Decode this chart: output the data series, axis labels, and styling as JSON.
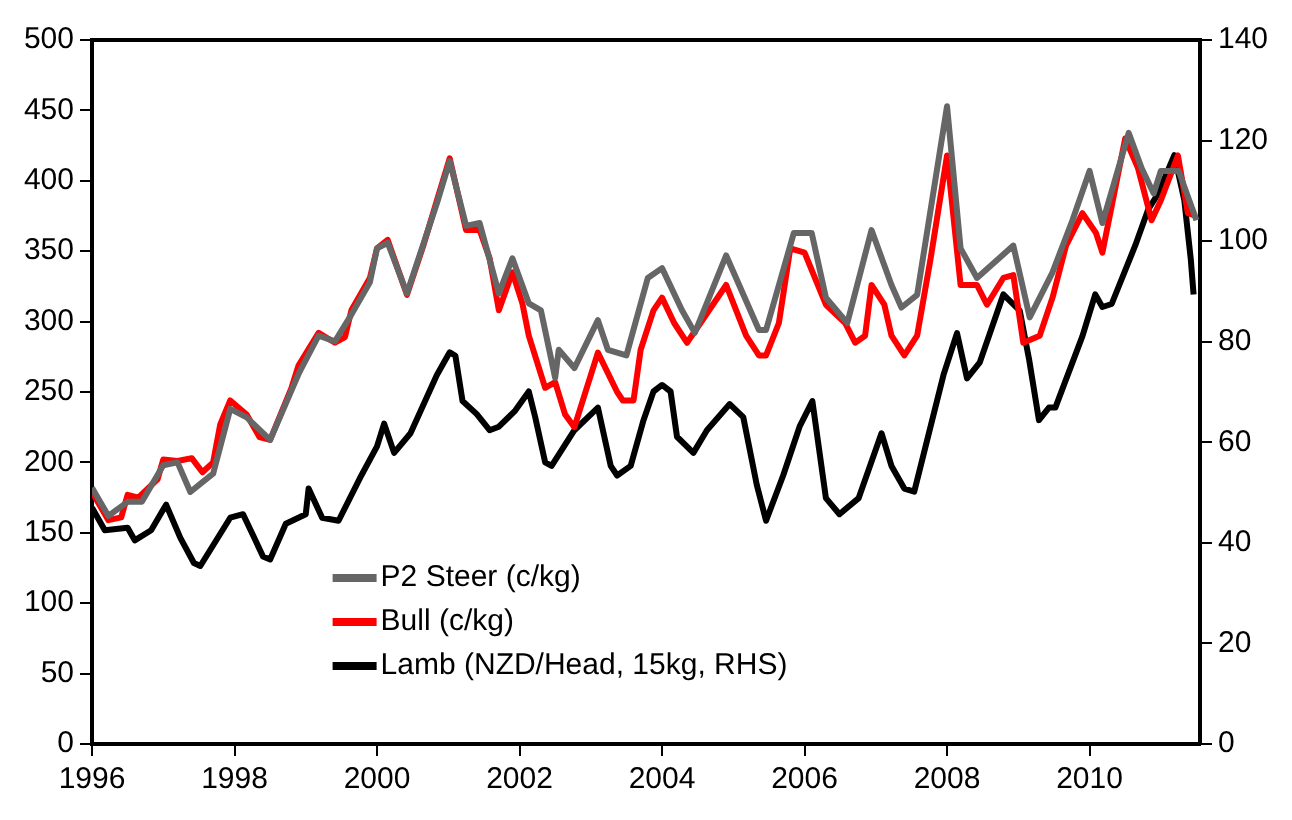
{
  "chart_data": {
    "type": "line",
    "xlim": [
      1996,
      2011.55
    ],
    "xticks": [
      1996,
      1998,
      2000,
      2002,
      2004,
      2006,
      2008,
      2010
    ],
    "ylim": [
      0,
      500
    ],
    "yticks": [
      0,
      50,
      100,
      150,
      200,
      250,
      300,
      350,
      400,
      450,
      500
    ],
    "y2lim": [
      0,
      140
    ],
    "y2ticks": [
      0,
      20,
      40,
      60,
      80,
      100,
      120,
      140
    ],
    "grid": false,
    "legend": "bottom",
    "marker": "none",
    "line_style": "solid",
    "series": [
      {
        "name": "P2 Steer (c/kg)",
        "color": "#666666",
        "x": [
          1996,
          1996.23,
          1996.5,
          1996.7,
          1997,
          1997.2,
          1997.38,
          1997.55,
          1997.7,
          1997.94,
          1998.17,
          1998.5,
          1998.9,
          1999.18,
          1999.41,
          1999.64,
          1999.9,
          2000,
          2000.15,
          2000.42,
          2000.84,
          2001.02,
          2001.25,
          2001.44,
          2001.71,
          2001.9,
          2002.13,
          2002.3,
          2002.5,
          2002.55,
          2002.77,
          2003.1,
          2003.24,
          2003.5,
          2003.8,
          2004,
          2004.28,
          2004.46,
          2004.9,
          2005.36,
          2005.46,
          2005.85,
          2006.1,
          2006.3,
          2006.6,
          2006.94,
          2007.22,
          2007.36,
          2007.58,
          2008,
          2008.19,
          2008.42,
          2008.93,
          2009.16,
          2009.48,
          2009.76,
          2010,
          2010.18,
          2010.55,
          2010.73,
          2010.9,
          2011,
          2011.25,
          2011.5
        ],
        "values": [
          182,
          162,
          172,
          172,
          198,
          200,
          179,
          186,
          192,
          238,
          232,
          216,
          263,
          290,
          286,
          305,
          328,
          352,
          356,
          320,
          384,
          414,
          368,
          370,
          320,
          345,
          313,
          308,
          260,
          280,
          267,
          301,
          280,
          276,
          331,
          338,
          308,
          292,
          347,
          294,
          294,
          363,
          363,
          317,
          299,
          365,
          326,
          310,
          319,
          453,
          352,
          331,
          354,
          303,
          335,
          372,
          407,
          370,
          434,
          409,
          391,
          407,
          407,
          372
        ]
      },
      {
        "name": "Bull (c/kg)",
        "color": "#ff0000",
        "x": [
          1996,
          1996.23,
          1996.41,
          1996.5,
          1996.65,
          1996.92,
          1997,
          1997.2,
          1997.4,
          1997.55,
          1997.7,
          1997.8,
          1997.94,
          1998.17,
          1998.35,
          1998.5,
          1998.8,
          1998.9,
          1999.18,
          1999.41,
          1999.55,
          1999.64,
          1999.9,
          2000,
          2000.15,
          2000.42,
          2000.65,
          2000.84,
          2001.02,
          2001.25,
          2001.44,
          2001.58,
          2001.71,
          2001.9,
          2002.04,
          2002.13,
          2002.36,
          2002.5,
          2002.64,
          2002.77,
          2003.1,
          2003.37,
          2003.45,
          2003.6,
          2003.7,
          2003.88,
          2004,
          2004.17,
          2004.35,
          2004.54,
          2004.9,
          2005.18,
          2005.36,
          2005.46,
          2005.64,
          2005.8,
          2006,
          2006.3,
          2006.57,
          2006.71,
          2006.85,
          2006.94,
          2007.12,
          2007.22,
          2007.4,
          2007.58,
          2007.77,
          2008,
          2008.19,
          2008.42,
          2008.56,
          2008.79,
          2008.93,
          2009.07,
          2009.3,
          2009.48,
          2009.67,
          2009.9,
          2010.09,
          2010.18,
          2010.5,
          2010.68,
          2010.87,
          2011,
          2011.24,
          2011.38,
          2011.5
        ],
        "values": [
          179,
          159,
          161,
          177,
          175,
          188,
          202,
          201,
          203,
          193,
          200,
          227,
          244,
          234,
          218,
          216,
          253,
          269,
          292,
          285,
          289,
          308,
          331,
          352,
          358,
          319,
          354,
          386,
          416,
          365,
          365,
          345,
          308,
          335,
          313,
          290,
          253,
          257,
          234,
          225,
          278,
          250,
          244,
          244,
          280,
          308,
          317,
          299,
          285,
          299,
          326,
          290,
          276,
          276,
          299,
          352,
          349,
          312,
          299,
          285,
          290,
          326,
          312,
          290,
          276,
          290,
          345,
          418,
          326,
          326,
          312,
          331,
          333,
          285,
          290,
          317,
          354,
          377,
          363,
          349,
          430,
          409,
          372,
          386,
          418,
          377,
          375
        ]
      },
      {
        "name": "Lamb (NZD/Head, 15kg, RHS)",
        "color": "#000000",
        "axis": "y2",
        "x": [
          1996,
          1996.18,
          1996.5,
          1996.6,
          1996.83,
          1997.04,
          1997.24,
          1997.43,
          1997.52,
          1997.94,
          1998.12,
          1998.4,
          1998.5,
          1998.72,
          1999,
          1999.04,
          1999.23,
          1999.46,
          1999.78,
          2000,
          2000.1,
          2000.24,
          2000.47,
          2000.84,
          2001.02,
          2001.1,
          2001.2,
          2001.4,
          2001.58,
          2001.71,
          2001.94,
          2002.13,
          2002.22,
          2002.36,
          2002.45,
          2002.77,
          2003.1,
          2003.28,
          2003.37,
          2003.56,
          2003.74,
          2003.88,
          2004,
          2004.12,
          2004.21,
          2004.44,
          2004.63,
          2004.95,
          2005.14,
          2005.33,
          2005.46,
          2005.7,
          2005.93,
          2006.11,
          2006.3,
          2006.49,
          2006.76,
          2007.08,
          2007.22,
          2007.4,
          2007.54,
          2007.95,
          2008.14,
          2008.28,
          2008.46,
          2008.79,
          2009.02,
          2009.15,
          2009.29,
          2009.43,
          2009.52,
          2009.9,
          2010.08,
          2010.18,
          2010.31,
          2010.64,
          2010.82,
          2010.96,
          2011.19,
          2011.33,
          2011.42,
          2011.46
        ],
        "values": [
          47,
          42.5,
          43,
          40.5,
          42.5,
          47.6,
          41,
          36,
          35.4,
          45,
          45.7,
          37.3,
          36.7,
          43.8,
          45.7,
          50.8,
          45,
          44.4,
          53.4,
          59.2,
          63.7,
          57.9,
          61.8,
          73.4,
          77.9,
          77.2,
          68.2,
          65.6,
          62.4,
          63.1,
          66.3,
          70.1,
          65,
          56,
          55.3,
          62.4,
          66.9,
          55.3,
          53.4,
          55.3,
          64.4,
          70.1,
          71.4,
          70.1,
          61.1,
          57.9,
          62.4,
          67.6,
          65,
          51.5,
          44.4,
          53.4,
          63.1,
          68.2,
          48.9,
          45.7,
          48.9,
          61.8,
          55.3,
          50.8,
          50.2,
          73.4,
          81.7,
          72.7,
          75.9,
          89.4,
          86.2,
          76.6,
          64.4,
          66.9,
          66.9,
          81.1,
          89.4,
          86.9,
          87.5,
          99.1,
          106.2,
          109.4,
          117.1,
          108.1,
          96.5,
          89.4
        ]
      }
    ]
  }
}
